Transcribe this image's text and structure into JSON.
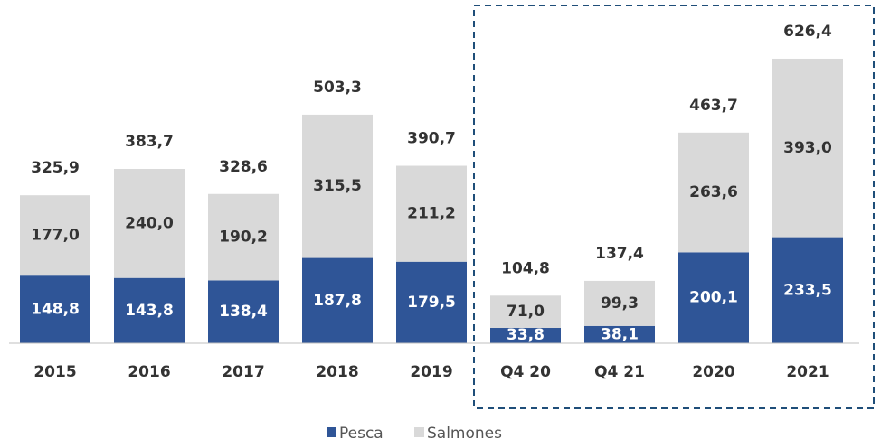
{
  "chart_data": {
    "type": "stacked_bar",
    "categories": [
      "2015",
      "2016",
      "2017",
      "2018",
      "2019",
      "Q4 20",
      "Q4 21",
      "2020",
      "2021"
    ],
    "series": [
      {
        "name": "Pesca",
        "color": "#2f5597",
        "values": [
          148.8,
          143.8,
          138.4,
          187.8,
          179.5,
          33.8,
          38.1,
          200.1,
          233.5
        ],
        "value_labels": [
          "148,8",
          "143,8",
          "138,4",
          "187,8",
          "179,5",
          "33,8",
          "38,1",
          "200,1",
          "233,5"
        ]
      },
      {
        "name": "Salmones",
        "color": "#d9d9d9",
        "values": [
          177.0,
          240.0,
          190.2,
          315.5,
          211.2,
          71.0,
          99.3,
          263.6,
          393.0
        ],
        "value_labels": [
          "177,0",
          "240,0",
          "190,2",
          "315,5",
          "211,2",
          "71,0",
          "99,3",
          "263,6",
          "393,0"
        ]
      }
    ],
    "totals": [
      325.9,
      383.7,
      328.6,
      503.3,
      390.7,
      104.8,
      137.4,
      463.7,
      626.4
    ],
    "totals_labels": [
      "325,9",
      "383,7",
      "328,6",
      "503,3",
      "390,7",
      "104,8",
      "137,4",
      "463,7",
      "626,4"
    ],
    "ylim": [
      0,
      700
    ]
  }
}
